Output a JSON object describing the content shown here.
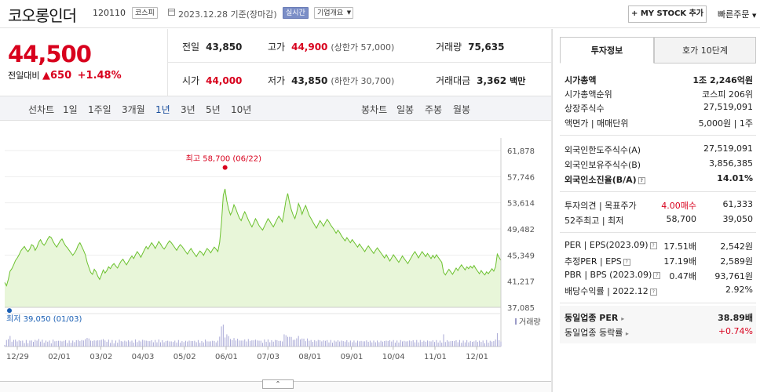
{
  "header": {
    "name": "코오롱인더",
    "code": "120110",
    "market_tag": "코스피",
    "date": "2023.12.28 기준(장마감)",
    "live_tag": "실시간",
    "company_tag": "기업개요",
    "mystock_label": "+ MY STOCK 추가",
    "quick_order_label": "빠른주문"
  },
  "quote": {
    "price": "44,500",
    "change_label": "전일대비",
    "change_arrow": "▲",
    "change": "650",
    "change_pct": "+1.48%",
    "prev_label": "전일",
    "prev": "43,850",
    "high_label": "고가",
    "high": "44,900",
    "upper_limit": "(상한가 57,000)",
    "volume_label": "거래량",
    "volume": "75,635",
    "open_label": "시가",
    "open": "44,000",
    "low_label": "저가",
    "low": "43,850",
    "lower_limit": "(하한가 30,700)",
    "amount_label": "거래대금",
    "amount": "3,362",
    "amount_unit": "백만"
  },
  "chart_tabs": {
    "line_label": "선차트",
    "ranges": [
      "1일",
      "1주일",
      "3개월",
      "1년",
      "3년",
      "5년",
      "10년"
    ],
    "selected_range": "1년",
    "candle_label": "봉차트",
    "candles": [
      "일봉",
      "주봉",
      "월봉"
    ]
  },
  "chart_data": {
    "type": "area",
    "y_ticks": [
      "61,878",
      "57,746",
      "53,614",
      "49,482",
      "45,349",
      "41,217",
      "37,085"
    ],
    "ylim": [
      37085,
      61878
    ],
    "x_ticks": [
      "12/29",
      "02/01",
      "03/02",
      "04/03",
      "05/02",
      "06/01",
      "07/03",
      "08/01",
      "09/01",
      "10/04",
      "11/01",
      "12/01"
    ],
    "high_annotation": "최고 58,700 (06/22)",
    "low_annotation": "최저 39,050 (01/03)",
    "volume_legend": "거래량",
    "values": [
      41000,
      40500,
      41500,
      42800,
      43200,
      43800,
      44500,
      44900,
      45400,
      46000,
      46400,
      46700,
      46200,
      45900,
      46300,
      47000,
      46800,
      46100,
      46600,
      47400,
      47800,
      47200,
      46900,
      47300,
      47900,
      48300,
      48100,
      47500,
      47000,
      46600,
      47100,
      47600,
      47900,
      47300,
      46800,
      46500,
      46100,
      45700,
      45300,
      45700,
      46200,
      46900,
      47300,
      46700,
      46100,
      45400,
      44200,
      43400,
      42600,
      42300,
      43100,
      42700,
      42000,
      41500,
      42200,
      43000,
      42500,
      42900,
      43500,
      43200,
      43700,
      44000,
      43600,
      43300,
      43900,
      44400,
      44700,
      44200,
      43800,
      44300,
      44800,
      45200,
      44800,
      45400,
      45900,
      45500,
      45000,
      45600,
      46200,
      46700,
      46300,
      46800,
      47300,
      46900,
      46400,
      46900,
      47500,
      47100,
      46600,
      46300,
      46700,
      47200,
      47600,
      47300,
      46900,
      46500,
      46100,
      46600,
      47000,
      46700,
      46300,
      45900,
      45500,
      46000,
      46400,
      45900,
      45500,
      45100,
      45600,
      46000,
      45700,
      45300,
      45900,
      46400,
      46100,
      45700,
      46200,
      46600,
      46300,
      45900,
      47400,
      50500,
      54800,
      55800,
      53900,
      52600,
      51700,
      52300,
      53300,
      52700,
      51900,
      51200,
      50800,
      51600,
      52200,
      51600,
      50900,
      50300,
      49800,
      50400,
      51100,
      50600,
      50000,
      49600,
      49300,
      49900,
      50500,
      51100,
      50700,
      50200,
      49800,
      50400,
      51000,
      51500,
      51100,
      50600,
      52200,
      54000,
      55100,
      53600,
      52500,
      51700,
      51100,
      52100,
      53500,
      52800,
      51800,
      52600,
      53200,
      52400,
      51600,
      51100,
      50600,
      50100,
      49600,
      50200,
      50800,
      50400,
      49900,
      50500,
      51000,
      50600,
      50100,
      49700,
      49300,
      48800,
      49300,
      48900,
      48400,
      48000,
      47600,
      48100,
      47700,
      47300,
      47800,
      47400,
      47000,
      46600,
      47100,
      46700,
      46300,
      45900,
      46400,
      46800,
      46400,
      46000,
      45600,
      46100,
      46500,
      46100,
      45700,
      45300,
      44900,
      45400,
      44900,
      44400,
      44900,
      45400,
      45000,
      44600,
      44200,
      44700,
      45200,
      44800,
      44400,
      44000,
      44500,
      45000,
      45500,
      45900,
      45400,
      44900,
      45400,
      45900,
      45500,
      45100,
      45600,
      45200,
      44800,
      45300,
      44900,
      45400,
      45000,
      44600,
      44200,
      42600,
      42200,
      42700,
      43100,
      42700,
      42300,
      42800,
      43300,
      42900,
      43400,
      43800,
      43400,
      43000,
      43500,
      43200,
      43600,
      43300,
      43700,
      43200,
      42800,
      42400,
      42900,
      42500,
      42200,
      42700,
      42400,
      42800,
      43200,
      42800,
      43500,
      45500,
      45000,
      44500
    ]
  },
  "side_tabs": {
    "info": "투자정보",
    "hoga": "호가 10단계"
  },
  "side": {
    "market_cap_label": "시가총액",
    "market_cap": "1조 2,246억원",
    "rank_label": "시가총액순위",
    "rank": "코스피 206위",
    "shares_label": "상장주식수",
    "shares": "27,519,091",
    "face_label": "액면가 | 매매단위",
    "face": "5,000원 | 1주",
    "foreign_limit_label": "외국인한도주식수(A)",
    "foreign_limit": "27,519,091",
    "foreign_hold_label": "외국인보유주식수(B)",
    "foreign_hold": "3,856,385",
    "foreign_ratio_label": "외국인소진율(B/A)",
    "foreign_ratio": "14.01%",
    "opinion_label": "투자의견 | 목표주가",
    "opinion": "4.00매수",
    "target": "61,333",
    "range52_label": "52주최고 | 최저",
    "high52": "58,700",
    "low52": "39,050",
    "per_label": "PER | EPS(2023.09)",
    "per": "17.51배",
    "eps": "2,542원",
    "est_per_label": "추정PER | EPS",
    "est_per": "17.19배",
    "est_eps": "2,589원",
    "pbr_label": "PBR | BPS (2023.09)",
    "pbr": "0.47배",
    "bps": "93,761원",
    "div_label": "배당수익률 | 2022.12",
    "div": "2.92%",
    "sector_per_label": "동일업종 PER",
    "sector_per": "38.89배",
    "sector_chg_label": "동일업종 등락률",
    "sector_chg": "+0.74%"
  },
  "colors": {
    "up": "#d8011d",
    "line": "#6cc12f",
    "fill": "#e8f6d9",
    "low_marker": "#1a5fb4"
  }
}
